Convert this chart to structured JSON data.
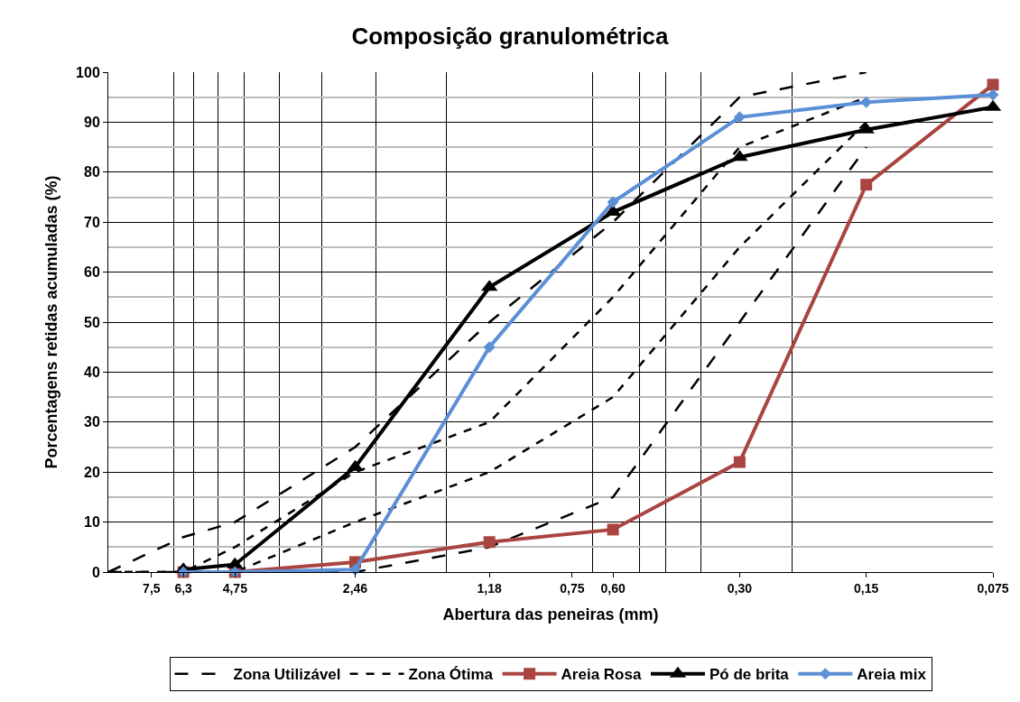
{
  "chart_data": {
    "type": "line",
    "title": "Composição granulométrica",
    "xlabel": "Abertura das peneiras (mm)",
    "ylabel": "Porcentagens retidas acumuladas (%)",
    "log": "x",
    "grid": true,
    "legend": "bottom",
    "xlim": [
      9.5,
      0.075
    ],
    "xticks": [
      {
        "value": 7.5,
        "label": "7,5"
      },
      {
        "value": 6.3,
        "label": "6,3"
      },
      {
        "value": 4.75,
        "label": "4,75"
      },
      {
        "value": 2.46,
        "label": "2,46"
      },
      {
        "value": 1.18,
        "label": "1,18"
      },
      {
        "value": 0.75,
        "label": "0,75"
      },
      {
        "value": 0.6,
        "label": "0,60"
      },
      {
        "value": 0.3,
        "label": "0,30"
      },
      {
        "value": 0.15,
        "label": "0,15"
      },
      {
        "value": 0.075,
        "label": "0,075"
      },
      {
        "value": 6.65,
        "label": null
      },
      {
        "value": 5.96,
        "label": null
      },
      {
        "value": 5.2,
        "label": null
      },
      {
        "value": 4.52,
        "label": null
      },
      {
        "value": 3.72,
        "label": null
      },
      {
        "value": 2.96,
        "label": null
      },
      {
        "value": 2.2,
        "label": null
      },
      {
        "value": 1.49,
        "label": null
      },
      {
        "value": 0.67,
        "label": null
      },
      {
        "value": 0.52,
        "label": null
      },
      {
        "value": 0.45,
        "label": null
      },
      {
        "value": 0.37,
        "label": null
      },
      {
        "value": 0.225,
        "label": null
      }
    ],
    "ylim": [
      0,
      100
    ],
    "yticks": [
      0,
      10,
      20,
      30,
      40,
      50,
      60,
      70,
      80,
      90,
      100,
      {
        "value": 5,
        "label": null
      },
      {
        "value": 15,
        "label": null
      },
      {
        "value": 25,
        "label": null
      },
      {
        "value": 35,
        "label": null
      },
      {
        "value": 45,
        "label": null
      },
      {
        "value": 55,
        "label": null
      },
      {
        "value": 65,
        "label": null
      },
      {
        "value": 75,
        "label": null
      },
      {
        "value": 85,
        "label": null
      },
      {
        "value": 95,
        "label": null
      }
    ],
    "series": [
      {
        "name": "Zona Utilizável",
        "color": "#000000",
        "line_style": "dashed",
        "marker": "none",
        "x": [
          9.5,
          6.3,
          4.75,
          2.46,
          1.18,
          0.6,
          0.3,
          0.15
        ],
        "values": [
          0,
          7,
          10,
          25,
          50,
          70,
          95,
          100
        ]
      },
      {
        "color": "#000000",
        "line_style": "dashed",
        "marker": "none",
        "x": [
          9.5,
          6.3,
          4.75,
          2.46,
          1.18,
          0.6,
          0.3,
          0.15
        ],
        "values": [
          0,
          0,
          0,
          0,
          5,
          15,
          50,
          85
        ]
      },
      {
        "name": "Zona Ótima",
        "color": "#000000",
        "line_style": "dotted",
        "marker": "none",
        "x": [
          9.5,
          6.3,
          4.75,
          2.46,
          1.18,
          0.6,
          0.3,
          0.15
        ],
        "values": [
          0,
          0,
          5,
          20,
          30,
          55,
          85,
          95
        ]
      },
      {
        "color": "#000000",
        "line_style": "dotted",
        "marker": "none",
        "x": [
          9.5,
          6.3,
          4.75,
          2.46,
          1.18,
          0.6,
          0.3,
          0.15
        ],
        "values": [
          0,
          0,
          0,
          10,
          20,
          35,
          65,
          90
        ]
      },
      {
        "name": "Areia Rosa",
        "color": "#a94440",
        "line_style": "solid",
        "marker": "square",
        "x": [
          6.3,
          4.75,
          2.46,
          1.18,
          0.6,
          0.3,
          0.15,
          0.075
        ],
        "values": [
          0,
          0,
          2,
          6,
          8.5,
          22,
          77.5,
          97.5
        ]
      },
      {
        "name": "Pó de brita",
        "color": "#000000",
        "line_style": "solid",
        "marker": "triangle",
        "x": [
          6.3,
          4.75,
          2.46,
          1.18,
          0.6,
          0.3,
          0.15,
          0.075
        ],
        "values": [
          0.5,
          1.5,
          21,
          57,
          72,
          83,
          88.5,
          93
        ]
      },
      {
        "name": "Areia mix",
        "color": "#5b8fd6",
        "line_style": "solid",
        "marker": "diamond",
        "x": [
          6.3,
          4.75,
          2.46,
          1.18,
          0.6,
          0.3,
          0.15,
          0.075
        ],
        "values": [
          0,
          0,
          0.5,
          45,
          74,
          91,
          94,
          95.5
        ]
      }
    ]
  }
}
